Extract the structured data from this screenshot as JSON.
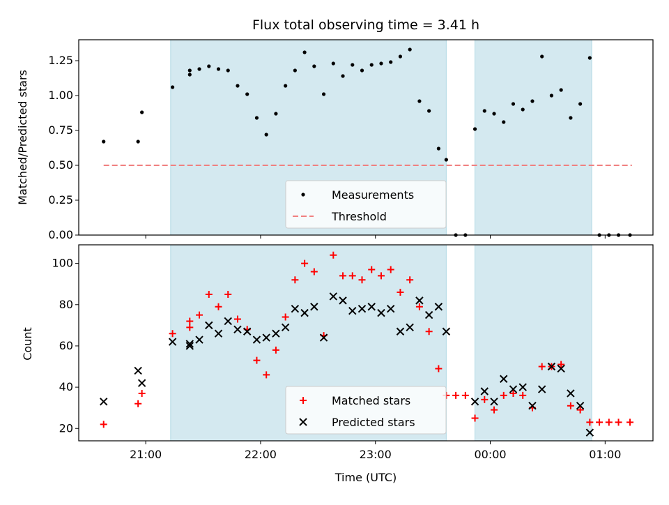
{
  "chart_data": [
    {
      "type": "scatter",
      "title": "Flux total observing time = 3.41 h",
      "xlabel": "",
      "ylabel": "Matched/Predicted stars",
      "ylim": [
        0.0,
        1.4
      ],
      "yticks": [
        "0.00",
        "0.25",
        "0.50",
        "0.75",
        "1.00",
        "1.25"
      ],
      "shaded_regions": [
        [
          "21:13",
          "23:37"
        ],
        [
          "23:52",
          "00:53"
        ]
      ],
      "shade_color": "#d4e9f0",
      "threshold": {
        "label": "Threshold",
        "value": 0.5,
        "x_range": [
          "20:38",
          "01:14"
        ],
        "color": "#f08080"
      },
      "legend": {
        "position": "lower-center",
        "entries": [
          "Measurements",
          "Threshold"
        ]
      },
      "series": [
        {
          "name": "Measurements",
          "color": "#000000",
          "x": [
            "20:38",
            "20:56",
            "20:58",
            "21:14",
            "21:23",
            "21:23",
            "21:28",
            "21:33",
            "21:38",
            "21:43",
            "21:48",
            "21:53",
            "21:58",
            "22:03",
            "22:08",
            "22:13",
            "22:18",
            "22:23",
            "22:28",
            "22:33",
            "22:38",
            "22:43",
            "22:48",
            "22:53",
            "22:58",
            "23:03",
            "23:08",
            "23:13",
            "23:18",
            "23:23",
            "23:28",
            "23:33",
            "23:37",
            "23:42",
            "23:47",
            "23:52",
            "23:57",
            "24:02",
            "24:07",
            "24:12",
            "24:17",
            "24:22",
            "24:27",
            "24:32",
            "24:37",
            "24:42",
            "24:47",
            "24:52",
            "24:57",
            "25:02",
            "25:07",
            "25:13"
          ],
          "y": [
            0.67,
            0.67,
            0.88,
            1.06,
            1.18,
            1.15,
            1.19,
            1.21,
            1.19,
            1.18,
            1.07,
            1.01,
            0.84,
            0.72,
            0.87,
            1.07,
            1.18,
            1.31,
            1.21,
            1.01,
            1.23,
            1.14,
            1.22,
            1.18,
            1.22,
            1.23,
            1.24,
            1.28,
            1.33,
            0.96,
            0.89,
            0.62,
            0.54,
            0.0,
            0.0,
            0.76,
            0.89,
            0.87,
            0.81,
            0.94,
            0.9,
            0.96,
            1.28,
            1.0,
            1.04,
            0.84,
            0.94,
            1.27,
            0.0,
            0.0,
            0.0,
            0.0
          ]
        }
      ]
    },
    {
      "type": "scatter",
      "title": "",
      "xlabel": "Time (UTC)",
      "ylabel": "Count",
      "ylim": [
        14,
        109
      ],
      "yticks": [
        "20",
        "40",
        "60",
        "80",
        "100"
      ],
      "xticks": [
        "21:00",
        "22:00",
        "23:00",
        "00:00",
        "01:00"
      ],
      "legend": {
        "position": "lower-center",
        "entries": [
          "Matched stars",
          "Predicted stars"
        ]
      },
      "series": [
        {
          "name": "Matched stars",
          "color": "#ff0000",
          "marker": "plus",
          "x": [
            "20:38",
            "20:56",
            "20:58",
            "21:14",
            "21:23",
            "21:23",
            "21:28",
            "21:33",
            "21:38",
            "21:43",
            "21:48",
            "21:53",
            "21:58",
            "22:03",
            "22:08",
            "22:13",
            "22:18",
            "22:23",
            "22:28",
            "22:33",
            "22:38",
            "22:43",
            "22:48",
            "22:53",
            "22:58",
            "23:03",
            "23:08",
            "23:13",
            "23:18",
            "23:23",
            "23:28",
            "23:33",
            "23:37",
            "23:42",
            "23:47",
            "23:52",
            "23:57",
            "24:02",
            "24:07",
            "24:12",
            "24:17",
            "24:22",
            "24:27",
            "24:32",
            "24:37",
            "24:42",
            "24:47",
            "24:52",
            "24:57",
            "25:02",
            "25:07",
            "25:13"
          ],
          "y": [
            22,
            32,
            37,
            66,
            72,
            69,
            75,
            85,
            79,
            85,
            73,
            68,
            53,
            46,
            58,
            74,
            92,
            100,
            96,
            65,
            104,
            94,
            94,
            92,
            97,
            94,
            97,
            86,
            92,
            79,
            67,
            49,
            36,
            36,
            36,
            25,
            34,
            29,
            36,
            37,
            36,
            30,
            50,
            50,
            51,
            31,
            29,
            23,
            23,
            23,
            23,
            23
          ]
        },
        {
          "name": "Predicted stars",
          "color": "#000000",
          "marker": "x",
          "x": [
            "20:38",
            "20:56",
            "20:58",
            "21:14",
            "21:23",
            "21:23",
            "21:28",
            "21:33",
            "21:38",
            "21:43",
            "21:48",
            "21:53",
            "21:58",
            "22:03",
            "22:08",
            "22:13",
            "22:18",
            "22:23",
            "22:28",
            "22:33",
            "22:38",
            "22:43",
            "22:48",
            "22:53",
            "22:58",
            "23:03",
            "23:08",
            "23:13",
            "23:18",
            "23:23",
            "23:28",
            "23:33",
            "23:37",
            "23:52",
            "23:57",
            "24:02",
            "24:07",
            "24:12",
            "24:17",
            "24:22",
            "24:27",
            "24:32",
            "24:37",
            "24:42",
            "24:47",
            "24:52"
          ],
          "y": [
            33,
            48,
            42,
            62,
            61,
            60,
            63,
            70,
            66,
            72,
            68,
            67,
            63,
            64,
            66,
            69,
            78,
            76,
            79,
            64,
            84,
            82,
            77,
            78,
            79,
            76,
            78,
            67,
            69,
            82,
            75,
            79,
            67,
            33,
            38,
            33,
            44,
            39,
            40,
            31,
            39,
            50,
            49,
            37,
            31,
            18
          ]
        }
      ]
    }
  ]
}
